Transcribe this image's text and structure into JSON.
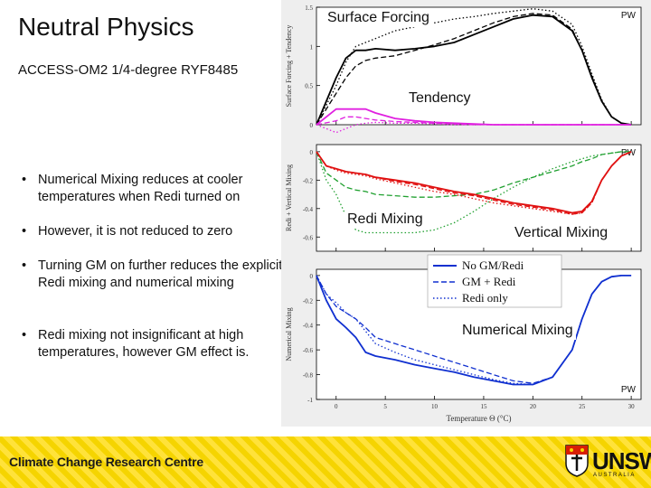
{
  "header": {
    "title": "Neutral Physics",
    "subtitle": "ACCESS-OM2 1/4-degree RYF8485"
  },
  "bullets": [
    "Numerical Mixing reduces at cooler temperatures when Redi turned on",
    "However, it is not reduced to zero",
    "Turning GM on further reduces the explicit Redi mixing and numerical mixing",
    "Redi mixing not insignificant at high temperatures, however GM effect is."
  ],
  "annotations": {
    "surface_forcing": "Surface Forcing",
    "tendency": "Tendency",
    "redi_mixing": "Redi Mixing",
    "vertical_mixing": "Vertical Mixing",
    "numerical_mixing": "Numerical Mixing"
  },
  "footer": {
    "org": "Climate Change Research Centre",
    "logo_word": "UNSW",
    "logo_sub": "AUSTRALIA"
  },
  "chart_data": [
    {
      "type": "line",
      "panel": "top",
      "ylabel": "Surface Forcing + Tendency",
      "region_label": "PW",
      "ylim": [
        0,
        1.5
      ],
      "yticks": [
        "1.5",
        "1",
        "0.5",
        "0"
      ],
      "xlim": [
        -2,
        31
      ],
      "x": [
        -2,
        0,
        1,
        2,
        3,
        4,
        6,
        8,
        10,
        12,
        14,
        16,
        18,
        20,
        22,
        24,
        25,
        26,
        27,
        28,
        29,
        30
      ],
      "series": [
        {
          "name": "Surface Forcing (No GM/Redi)",
          "group": "surface_forcing",
          "color": "#000000",
          "style": "solid",
          "values": [
            0,
            0.6,
            0.85,
            0.95,
            0.95,
            0.97,
            0.95,
            0.97,
            1.0,
            1.05,
            1.15,
            1.25,
            1.35,
            1.4,
            1.38,
            1.2,
            0.95,
            0.6,
            0.3,
            0.1,
            0.02,
            0
          ]
        },
        {
          "name": "Surface Forcing (GM + Redi)",
          "group": "surface_forcing",
          "color": "#000000",
          "style": "dashed",
          "values": [
            0,
            0.4,
            0.6,
            0.75,
            0.82,
            0.85,
            0.88,
            0.95,
            1.02,
            1.1,
            1.2,
            1.3,
            1.38,
            1.42,
            1.4,
            1.22,
            0.95,
            0.62,
            0.3,
            0.1,
            0.02,
            0
          ]
        },
        {
          "name": "Surface Forcing (Redi only)",
          "group": "surface_forcing",
          "color": "#000000",
          "style": "dotted",
          "values": [
            0,
            0.5,
            0.8,
            1.0,
            1.05,
            1.1,
            1.2,
            1.25,
            1.3,
            1.35,
            1.38,
            1.42,
            1.45,
            1.48,
            1.45,
            1.28,
            1.0,
            0.65,
            0.32,
            0.1,
            0.02,
            0
          ]
        },
        {
          "name": "Tendency (No GM/Redi)",
          "group": "tendency",
          "color": "#e020e0",
          "style": "solid",
          "values": [
            0,
            0.2,
            0.2,
            0.2,
            0.2,
            0.15,
            0.08,
            0.05,
            0.03,
            0.02,
            0.01,
            0,
            0,
            0,
            0,
            0,
            0,
            0,
            0,
            0,
            0,
            0
          ]
        },
        {
          "name": "Tendency (GM + Redi)",
          "group": "tendency",
          "color": "#e020e0",
          "style": "dashed",
          "values": [
            0,
            0.05,
            0.1,
            0.1,
            0.08,
            0.06,
            0.04,
            0.03,
            0.02,
            0.01,
            0,
            0,
            0,
            0,
            0,
            0,
            0,
            0,
            0,
            0,
            0,
            0
          ]
        },
        {
          "name": "Tendency (Redi only)",
          "group": "tendency",
          "color": "#e020e0",
          "style": "dotted",
          "values": [
            0,
            -0.1,
            -0.05,
            0,
            0.02,
            0.03,
            0.02,
            0.02,
            0.01,
            0,
            0,
            0,
            0,
            0,
            0,
            0,
            0,
            0,
            0,
            0,
            0,
            0
          ]
        }
      ]
    },
    {
      "type": "line",
      "panel": "middle",
      "ylabel": "Redi + Vertical Mixing",
      "region_label": "PW",
      "ylim": [
        -0.7,
        0.05
      ],
      "yticks": [
        "0",
        "-0.2",
        "-0.4",
        "-0.6"
      ],
      "xlim": [
        -2,
        31
      ],
      "x": [
        -2,
        -1,
        0,
        1,
        2,
        3,
        4,
        6,
        8,
        10,
        12,
        14,
        16,
        18,
        20,
        22,
        24,
        25,
        26,
        27,
        28,
        29,
        30
      ],
      "series": [
        {
          "name": "Redi Mixing (GM + Redi)",
          "group": "redi_mixing",
          "color": "#20a030",
          "style": "dashed",
          "values": [
            0,
            -0.15,
            -0.2,
            -0.25,
            -0.27,
            -0.28,
            -0.3,
            -0.31,
            -0.32,
            -0.32,
            -0.31,
            -0.3,
            -0.27,
            -0.22,
            -0.18,
            -0.14,
            -0.1,
            -0.07,
            -0.05,
            -0.02,
            -0.01,
            0,
            0
          ]
        },
        {
          "name": "Redi Mixing (Redi only)",
          "group": "redi_mixing",
          "color": "#20a030",
          "style": "dotted",
          "values": [
            0,
            -0.2,
            -0.3,
            -0.45,
            -0.55,
            -0.57,
            -0.57,
            -0.57,
            -0.57,
            -0.55,
            -0.5,
            -0.42,
            -0.33,
            -0.25,
            -0.18,
            -0.12,
            -0.07,
            -0.05,
            -0.03,
            -0.02,
            -0.01,
            0,
            0
          ]
        },
        {
          "name": "Vertical Mixing (No GM/Redi)",
          "group": "vertical_mixing",
          "color": "#e01010",
          "style": "solid",
          "values": [
            0,
            -0.1,
            -0.12,
            -0.14,
            -0.15,
            -0.16,
            -0.18,
            -0.2,
            -0.22,
            -0.25,
            -0.28,
            -0.3,
            -0.33,
            -0.36,
            -0.38,
            -0.4,
            -0.43,
            -0.42,
            -0.35,
            -0.2,
            -0.1,
            -0.03,
            0
          ]
        },
        {
          "name": "Vertical Mixing (GM + Redi)",
          "group": "vertical_mixing",
          "color": "#e01010",
          "style": "dashed",
          "values": [
            0,
            -0.1,
            -0.12,
            -0.14,
            -0.15,
            -0.16,
            -0.18,
            -0.21,
            -0.23,
            -0.26,
            -0.29,
            -0.31,
            -0.34,
            -0.37,
            -0.39,
            -0.41,
            -0.44,
            -0.43,
            -0.36,
            -0.2,
            -0.1,
            -0.03,
            0
          ]
        },
        {
          "name": "Vertical Mixing (Redi only)",
          "group": "vertical_mixing",
          "color": "#e01010",
          "style": "dotted",
          "values": [
            0,
            -0.1,
            -0.13,
            -0.15,
            -0.16,
            -0.17,
            -0.19,
            -0.22,
            -0.25,
            -0.28,
            -0.3,
            -0.33,
            -0.36,
            -0.38,
            -0.4,
            -0.42,
            -0.44,
            -0.43,
            -0.36,
            -0.2,
            -0.1,
            -0.03,
            0
          ]
        }
      ]
    },
    {
      "type": "line",
      "panel": "bottom",
      "ylabel": "Numerical Mixing",
      "xlabel": "Temperature Θ (°C)",
      "region_label": "PW",
      "ylim": [
        -1,
        0.05
      ],
      "yticks": [
        "0",
        "-0.2",
        "-0.4",
        "-0.6",
        "-0.8",
        "-1"
      ],
      "xlim": [
        -2,
        31
      ],
      "xticks": [
        "0",
        "5",
        "10",
        "15",
        "20",
        "25",
        "30"
      ],
      "legend": [
        "No GM/Redi",
        "GM + Redi",
        "Redi only"
      ],
      "legend_position": "top-right",
      "x": [
        -2,
        -1,
        0,
        1,
        2,
        3,
        4,
        6,
        8,
        10,
        12,
        14,
        16,
        18,
        20,
        22,
        24,
        25,
        26,
        27,
        28,
        29,
        30
      ],
      "series": [
        {
          "name": "No GM/Redi",
          "color": "#1030d0",
          "style": "solid",
          "values": [
            0,
            -0.2,
            -0.35,
            -0.42,
            -0.5,
            -0.62,
            -0.65,
            -0.68,
            -0.72,
            -0.75,
            -0.78,
            -0.82,
            -0.85,
            -0.88,
            -0.88,
            -0.82,
            -0.6,
            -0.35,
            -0.15,
            -0.05,
            -0.01,
            0,
            0
          ]
        },
        {
          "name": "GM + Redi",
          "color": "#1030d0",
          "style": "dashed",
          "values": [
            0,
            -0.15,
            -0.25,
            -0.3,
            -0.35,
            -0.42,
            -0.5,
            -0.55,
            -0.6,
            -0.65,
            -0.7,
            -0.75,
            -0.8,
            -0.85,
            -0.87,
            -0.82,
            -0.6,
            -0.35,
            -0.15,
            -0.05,
            -0.01,
            0,
            0
          ]
        },
        {
          "name": "Redi only",
          "color": "#1030d0",
          "style": "dotted",
          "values": [
            0,
            -0.15,
            -0.22,
            -0.3,
            -0.35,
            -0.45,
            -0.55,
            -0.62,
            -0.68,
            -0.72,
            -0.76,
            -0.8,
            -0.84,
            -0.87,
            -0.88,
            -0.82,
            -0.6,
            -0.35,
            -0.15,
            -0.05,
            -0.01,
            0,
            0
          ]
        }
      ]
    }
  ]
}
